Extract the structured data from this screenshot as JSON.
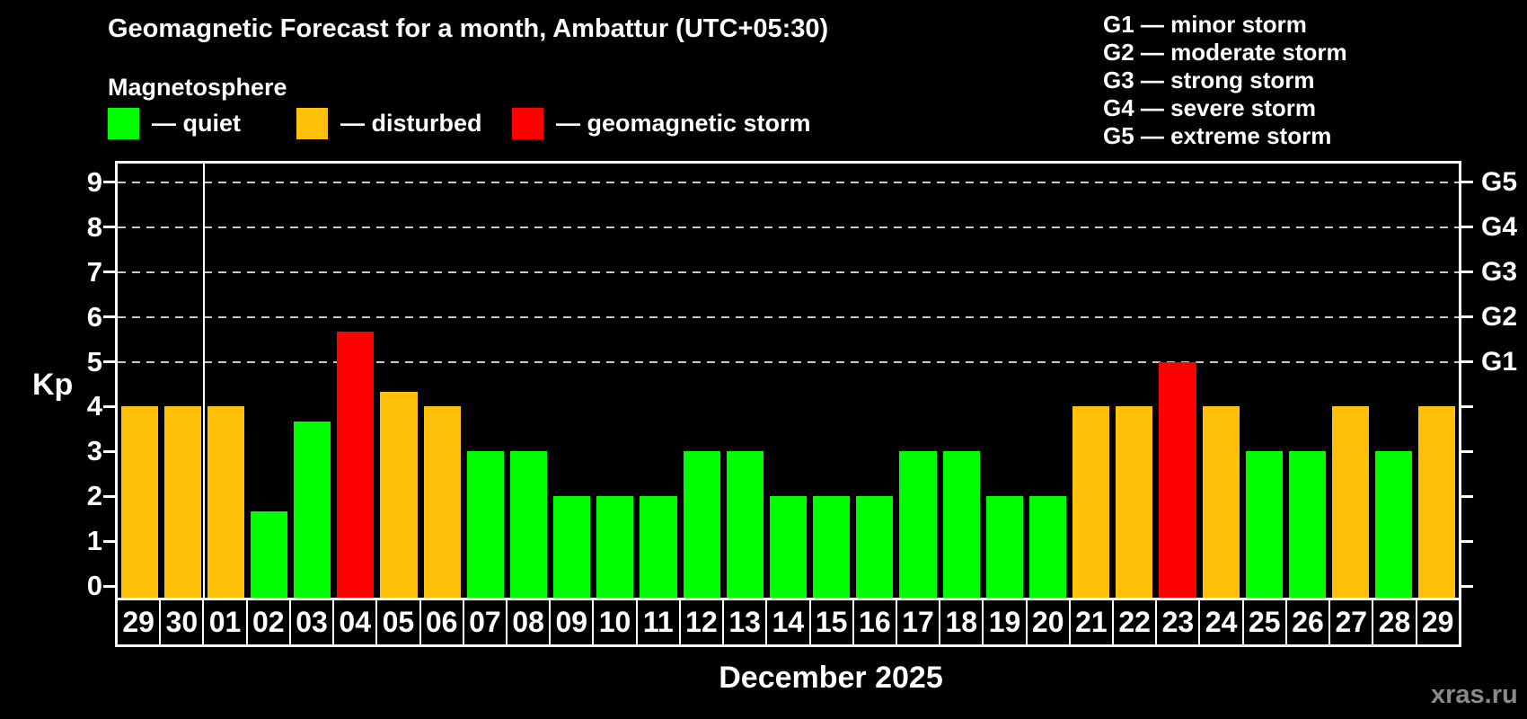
{
  "title": "Geomagnetic Forecast for a month, Ambattur (UTC+05:30)",
  "subtitle": "Magnetosphere",
  "legend": {
    "quiet": {
      "label": "— quiet",
      "color": "#00ff00"
    },
    "disturbed": {
      "label": "— disturbed",
      "color": "#ffc107"
    },
    "storm": {
      "label": "— geomagnetic storm",
      "color": "#ff0000"
    }
  },
  "g_legend": {
    "items": [
      "G1 — minor storm",
      "G2 — moderate storm",
      "G3 — strong storm",
      "G4 — severe storm",
      "G5 — extreme storm"
    ]
  },
  "axis": {
    "kp_label": "Kp",
    "left_tick_labels": [
      "0",
      "1",
      "2",
      "3",
      "4",
      "5",
      "6",
      "7",
      "8",
      "9"
    ],
    "right_axis_labels": [
      {
        "level": 5,
        "label": "G1"
      },
      {
        "level": 6,
        "label": "G2"
      },
      {
        "level": 7,
        "label": "G3"
      },
      {
        "level": 8,
        "label": "G4"
      },
      {
        "level": 9,
        "label": "G5"
      }
    ]
  },
  "month_label": "December 2025",
  "watermark": "xras.ru",
  "chart_data": {
    "type": "bar",
    "title": "Geomagnetic Forecast for a month, Ambattur (UTC+05:30)",
    "subtitle": "Magnetosphere",
    "xlabel": "December 2025",
    "ylabel": "Kp",
    "ylim": [
      0,
      9.7
    ],
    "grid_levels": [
      5,
      6,
      7,
      8,
      9
    ],
    "categories": [
      "29",
      "30",
      "01",
      "02",
      "03",
      "04",
      "05",
      "06",
      "07",
      "08",
      "09",
      "10",
      "11",
      "12",
      "13",
      "14",
      "15",
      "16",
      "17",
      "18",
      "19",
      "20",
      "21",
      "22",
      "23",
      "24",
      "25",
      "26",
      "27",
      "28",
      "29"
    ],
    "values": [
      4,
      4,
      4,
      1.67,
      3.67,
      5.67,
      4.33,
      4,
      3,
      3,
      2,
      2,
      2,
      3,
      3,
      2,
      2,
      2,
      3,
      3,
      2,
      2,
      4,
      4,
      5,
      4,
      3,
      3,
      4,
      3,
      4
    ],
    "statuses": [
      "disturbed",
      "disturbed",
      "disturbed",
      "quiet",
      "quiet",
      "storm",
      "disturbed",
      "disturbed",
      "quiet",
      "quiet",
      "quiet",
      "quiet",
      "quiet",
      "quiet",
      "quiet",
      "quiet",
      "quiet",
      "quiet",
      "quiet",
      "quiet",
      "quiet",
      "quiet",
      "disturbed",
      "disturbed",
      "storm",
      "disturbed",
      "quiet",
      "quiet",
      "disturbed",
      "quiet",
      "disturbed"
    ],
    "status_colors": {
      "quiet": "#00ff00",
      "disturbed": "#ffc107",
      "storm": "#ff0000"
    },
    "month_separator_after_index": 1,
    "legend_position": "top",
    "grid": "dashed, Kp 5–9 only"
  }
}
